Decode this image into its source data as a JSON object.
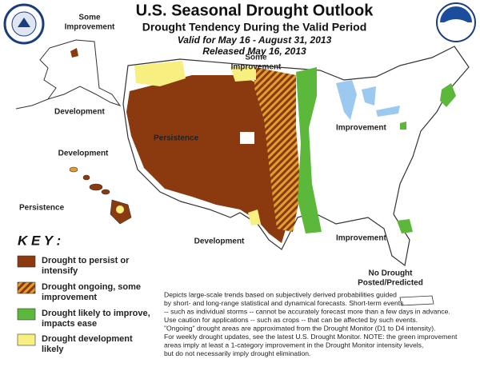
{
  "header": {
    "title": "U.S. Seasonal Drought Outlook",
    "subtitle": "Drought Tendency During the Valid Period",
    "valid": "Valid for May 16 - August 31, 2013",
    "released": "Released May 16, 2013"
  },
  "map_labels": [
    {
      "lines": [
        "Some",
        "Improvement"
      ]
    },
    {
      "lines": [
        "Some",
        "Improvement"
      ]
    },
    {
      "lines": [
        "Development"
      ]
    },
    {
      "lines": [
        "Development"
      ]
    },
    {
      "lines": [
        "Persistence"
      ]
    },
    {
      "lines": [
        "Persistence"
      ]
    },
    {
      "lines": [
        "Improvement"
      ]
    },
    {
      "lines": [
        "Development"
      ]
    },
    {
      "lines": [
        "Improvement"
      ]
    },
    {
      "lines": [
        "No Drought",
        "Posted/Predicted"
      ]
    }
  ],
  "key": {
    "title": "K E Y :",
    "items": [
      {
        "lines": [
          "Drought to persist or",
          "intensify"
        ]
      },
      {
        "lines": [
          "Drought ongoing, some",
          "improvement"
        ]
      },
      {
        "lines": [
          "Drought likely to improve,",
          "impacts ease"
        ]
      },
      {
        "lines": [
          "Drought development",
          "likely"
        ]
      }
    ]
  },
  "note": [
    "Depicts large-scale trends based on subjectively derived probabilities guided",
    "by short- and long-range statistical and dynamical forecasts. Short-term events",
    "-- such as individual storms -- cannot be accurately forecast more than a few days in advance.",
    "Use caution for applications -- such as crops -- that can be affected by such events.",
    "\"Ongoing\" drought areas are approximated from the Drought Monitor (D1 to D4 intensity).",
    "For weekly drought updates, see the latest U.S. Drought Monitor. NOTE: the green improvement",
    "areas imply at least a 1-category improvement in the Drought Monitor intensity levels,",
    "but do not necessarily imply drought elimination."
  ]
}
